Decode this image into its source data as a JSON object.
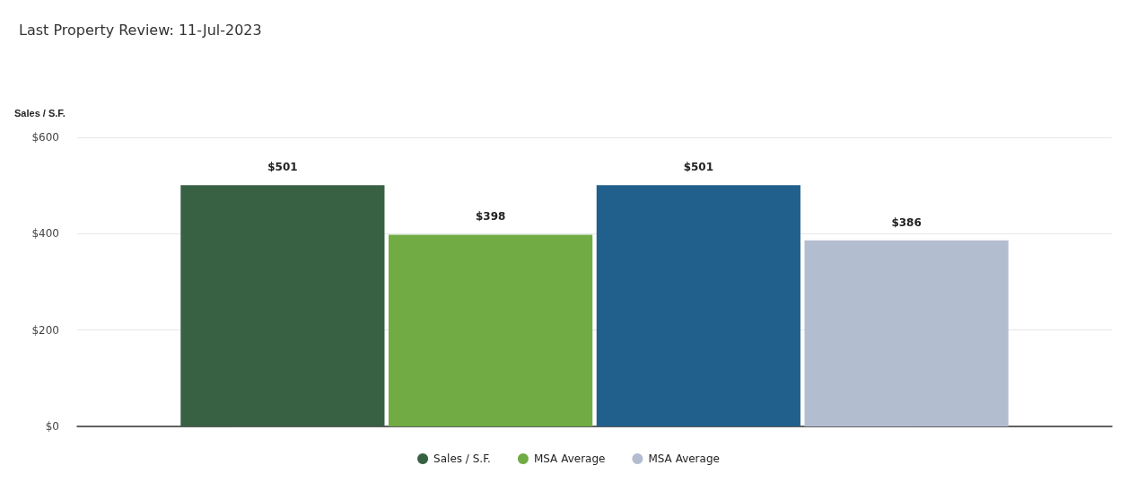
{
  "chart_data": {
    "type": "bar",
    "title": "Last Property Review: 11-Jul-2023",
    "ylabel": "Sales / S.F.",
    "categories": [
      null
    ],
    "series": [
      {
        "name": "Sales / S.F.",
        "color": "#386043",
        "values": [
          501
        ],
        "value_labels": [
          "$501"
        ]
      },
      {
        "name": "MSA Average",
        "color": "#70ab44",
        "values": [
          398
        ],
        "value_labels": [
          "$398"
        ]
      },
      {
        "color": "#21608c",
        "values": [
          501
        ],
        "value_labels": [
          "$501"
        ]
      },
      {
        "name": "MSA Average",
        "color": "#b3bdd0",
        "values": [
          386
        ],
        "value_labels": [
          "$386"
        ]
      }
    ],
    "ylim": [
      0,
      600
    ],
    "yticks": [
      {
        "value": 0,
        "label": "$0"
      },
      {
        "value": 200,
        "label": "$200"
      },
      {
        "value": 400,
        "label": "$400"
      },
      {
        "value": 600,
        "label": "$600"
      }
    ],
    "grid": "y",
    "legend": "bottom"
  }
}
